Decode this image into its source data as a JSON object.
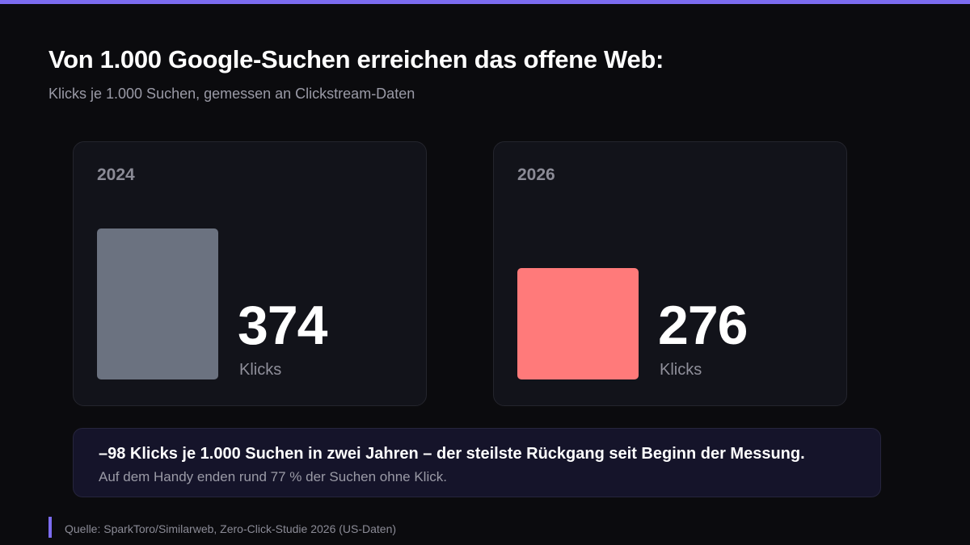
{
  "title": "Von 1.000 Google-Suchen erreichen das offene Web:",
  "subtitle": "Klicks je 1.000 Suchen, gemessen an Clickstream-Daten",
  "chart_data": {
    "type": "bar",
    "title": "Von 1.000 Google-Suchen erreichen das offene Web:",
    "subtitle": "Klicks je 1.000 Suchen, gemessen an Clickstream-Daten",
    "categories": [
      "2024",
      "2026"
    ],
    "values": [
      374,
      276
    ],
    "unit": "Klicks",
    "colors": [
      "#6b7280",
      "#ff7a7a"
    ],
    "grid": false,
    "legend": "none"
  },
  "panels": [
    {
      "year": "2024",
      "value": "374",
      "unit": "Klicks"
    },
    {
      "year": "2026",
      "value": "276",
      "unit": "Klicks"
    }
  ],
  "callout": {
    "headline": "–98 Klicks je 1.000 Suchen in zwei Jahren – der steilste Rückgang seit Beginn der Messung.",
    "text": "Auf dem Handy enden rund 77 % der Suchen ohne Klick."
  },
  "source": "Quelle: SparkToro/Similarweb, Zero-Click-Studie 2026 (US-Daten)",
  "colors": {
    "accent": "#7c6cf0",
    "bar_2024": "#6b7280",
    "bar_2026": "#ff7a7a"
  }
}
